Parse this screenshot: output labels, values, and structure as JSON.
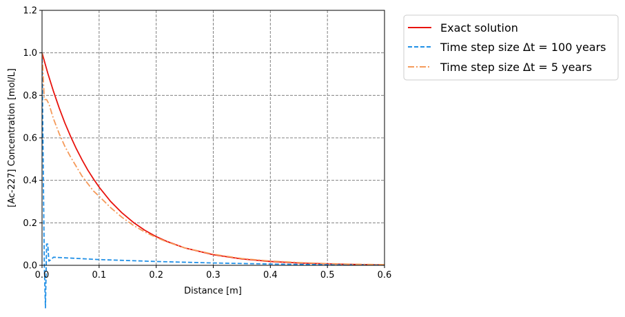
{
  "chart_data": {
    "type": "line",
    "xlabel": "Distance [m]",
    "ylabel": "[Ac-227] Concentration [mol/L]",
    "xlim": [
      0.0,
      0.6
    ],
    "ylim": [
      0.0,
      1.2
    ],
    "xticks": [
      0.0,
      0.1,
      0.2,
      0.3,
      0.4,
      0.5,
      0.6
    ],
    "xtick_labels": [
      "0.0",
      "0.1",
      "0.2",
      "0.3",
      "0.4",
      "0.5",
      "0.6"
    ],
    "yticks": [
      0.0,
      0.2,
      0.4,
      0.6,
      0.8,
      1.0,
      1.2
    ],
    "ytick_labels": [
      "0.0",
      "0.2",
      "0.4",
      "0.6",
      "0.8",
      "1.0",
      "1.2"
    ],
    "grid": true,
    "legend_position": "outside-top-right",
    "series": [
      {
        "name": "Exact solution",
        "color": "#e8120c",
        "style": "solid",
        "x": [
          0.0,
          0.01,
          0.02,
          0.03,
          0.04,
          0.05,
          0.06,
          0.07,
          0.08,
          0.09,
          0.1,
          0.12,
          0.14,
          0.16,
          0.18,
          0.2,
          0.22,
          0.25,
          0.3,
          0.35,
          0.4,
          0.45,
          0.5,
          0.55,
          0.6
        ],
        "y": [
          1.0,
          0.905,
          0.819,
          0.741,
          0.67,
          0.607,
          0.549,
          0.497,
          0.449,
          0.407,
          0.368,
          0.301,
          0.247,
          0.202,
          0.165,
          0.135,
          0.111,
          0.082,
          0.05,
          0.03,
          0.018,
          0.011,
          0.007,
          0.004,
          0.002
        ]
      },
      {
        "name": "Time step size Δt = 100 years",
        "color": "#1f8fe6",
        "style": "dashed",
        "x": [
          0.0,
          0.002,
          0.004,
          0.006,
          0.008,
          0.01,
          0.012,
          0.015,
          0.02,
          0.05,
          0.1,
          0.2,
          0.3,
          0.4,
          0.5,
          0.6
        ],
        "y": [
          1.0,
          0.5,
          0.0,
          -0.2,
          0.1,
          0.1,
          0.02,
          0.025,
          0.038,
          0.034,
          0.027,
          0.018,
          0.011,
          0.006,
          0.003,
          0.001
        ]
      },
      {
        "name": "Time step size Δt = 5 years",
        "color": "#f59a5a",
        "style": "dashdot",
        "x": [
          0.0,
          0.004,
          0.008,
          0.012,
          0.02,
          0.03,
          0.04,
          0.05,
          0.06,
          0.07,
          0.08,
          0.09,
          0.1,
          0.12,
          0.14,
          0.16,
          0.18,
          0.2,
          0.22,
          0.25,
          0.3,
          0.35,
          0.4,
          0.45,
          0.5,
          0.55,
          0.6
        ],
        "y": [
          1.0,
          0.78,
          0.78,
          0.76,
          0.69,
          0.62,
          0.56,
          0.51,
          0.465,
          0.42,
          0.385,
          0.35,
          0.325,
          0.272,
          0.226,
          0.188,
          0.157,
          0.131,
          0.109,
          0.082,
          0.052,
          0.032,
          0.02,
          0.013,
          0.008,
          0.005,
          0.003
        ]
      }
    ]
  }
}
